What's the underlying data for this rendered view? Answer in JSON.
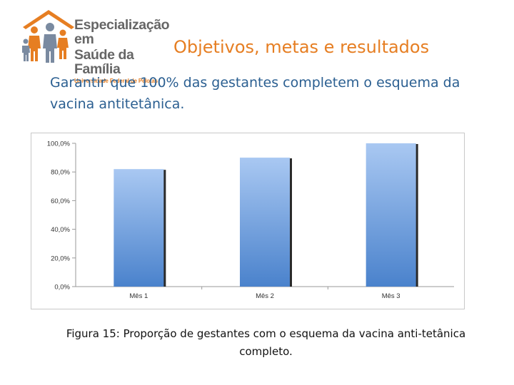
{
  "logo": {
    "line1": "Especialização em",
    "line2": "Saúde da Família",
    "line3": "Universidade Federal de Pelotas"
  },
  "slide": {
    "title": "Objetivos, metas e resultados",
    "goal": "Garantir que 100% das gestantes completem o esquema da vacina antitetânica."
  },
  "chart_data": {
    "type": "bar",
    "categories": [
      "Mês 1",
      "Mês 2",
      "Mês 3"
    ],
    "values": [
      82.0,
      90.0,
      100.0
    ],
    "ylim": [
      0,
      100
    ],
    "yticks": [
      "0,0%",
      "20,0%",
      "40,0%",
      "60,0%",
      "80,0%",
      "100,0%"
    ],
    "grid": false,
    "legend": "none",
    "bar_colors": {
      "top": "#a9c8f2",
      "bottom": "#4a82cc",
      "shadow": "#2a2a2a"
    },
    "caption": "Figura 15: Proporção de gestantes com o esquema da vacina anti-tetânica completo."
  }
}
